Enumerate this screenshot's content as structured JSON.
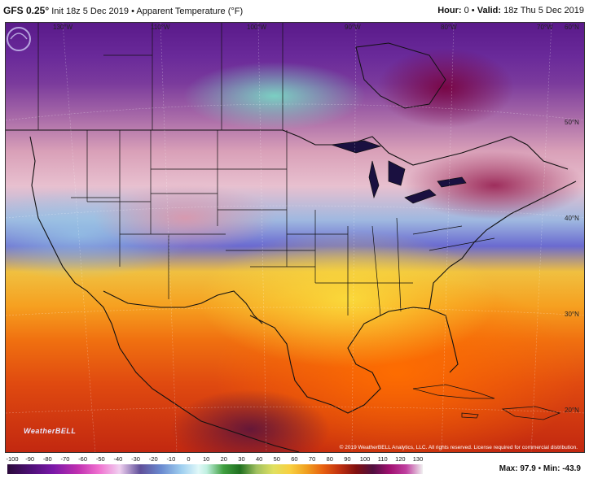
{
  "header": {
    "model": "GFS 0.25°",
    "init": "Init 18z 5 Dec 2019",
    "bullet": "•",
    "product": "Apparent Temperature (°F)",
    "hour_label": "Hour:",
    "hour_value": "0",
    "valid_label": "Valid:",
    "valid_value": "18z Thu 5 Dec 2019"
  },
  "map": {
    "longitude_labels": [
      "130°W",
      "110°W",
      "100°W",
      "90°W",
      "80°W",
      "70°W",
      "60°N"
    ],
    "latitude_labels": [
      "50°N",
      "40°N",
      "30°N",
      "20°N"
    ],
    "watermark": "WeatherBELL",
    "copyright": "© 2019 WeatherBELL Analytics, LLC. All rights reserved. License required for commercial distribution."
  },
  "scale": {
    "ticks": [
      "-100",
      "-90",
      "-80",
      "-70",
      "-60",
      "-50",
      "-40",
      "-30",
      "-20",
      "-10",
      "0",
      "10",
      "20",
      "30",
      "40",
      "50",
      "60",
      "70",
      "80",
      "90",
      "100",
      "110",
      "120",
      "130"
    ],
    "max_label": "Max:",
    "max_value": "97.9",
    "min_label": "Min:",
    "min_value": "-43.9",
    "separator": "•"
  },
  "colors": {
    "cold_extreme": "#5a1a8a",
    "cold": "#e8c0cf",
    "cool": "#6a6ad0",
    "mild": "#f0c040",
    "warm": "#f07010",
    "hot": "#c22810"
  }
}
